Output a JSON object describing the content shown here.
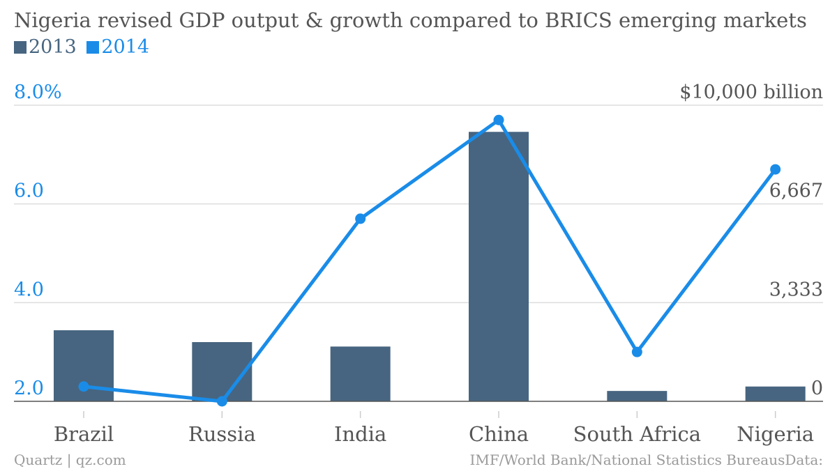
{
  "chart_data": {
    "type": "bar+line",
    "title": "Nigeria revised GDP output & growth compared to BRICS emerging markets",
    "categories": [
      "Brazil",
      "Russia",
      "India",
      "China",
      "South Africa",
      "Nigeria"
    ],
    "series": [
      {
        "name": "2013",
        "type": "bar",
        "axis": "right",
        "color": "#476580",
        "values": [
          2400,
          2000,
          1850,
          9100,
          350,
          500
        ]
      },
      {
        "name": "2014",
        "type": "line",
        "axis": "left",
        "color": "#1a8ce8",
        "values": [
          2.3,
          2.0,
          5.7,
          7.7,
          3.0,
          6.7
        ]
      }
    ],
    "y_left": {
      "min": 2.0,
      "max": 8.0,
      "ticks": [
        "2.0",
        "4.0",
        "6.0",
        "8.0%"
      ],
      "tick_values": [
        2,
        4,
        6,
        8
      ],
      "color": "#1a8ce8"
    },
    "y_right": {
      "min": 0,
      "max": 10000,
      "ticks": [
        "0",
        "3,333",
        "6,667",
        "$10,000 billion"
      ],
      "tick_values": [
        0,
        3333,
        6667,
        10000
      ],
      "color": "#555555"
    },
    "grid": true,
    "legend": "top-left"
  },
  "legend": {
    "items": [
      {
        "label": "2013",
        "color": "#476580"
      },
      {
        "label": "2014",
        "color": "#1a8ce8"
      }
    ]
  },
  "footer": {
    "left": "Quartz | qz.com",
    "right": "IMF/World Bank/National Statistics BureausData:"
  }
}
